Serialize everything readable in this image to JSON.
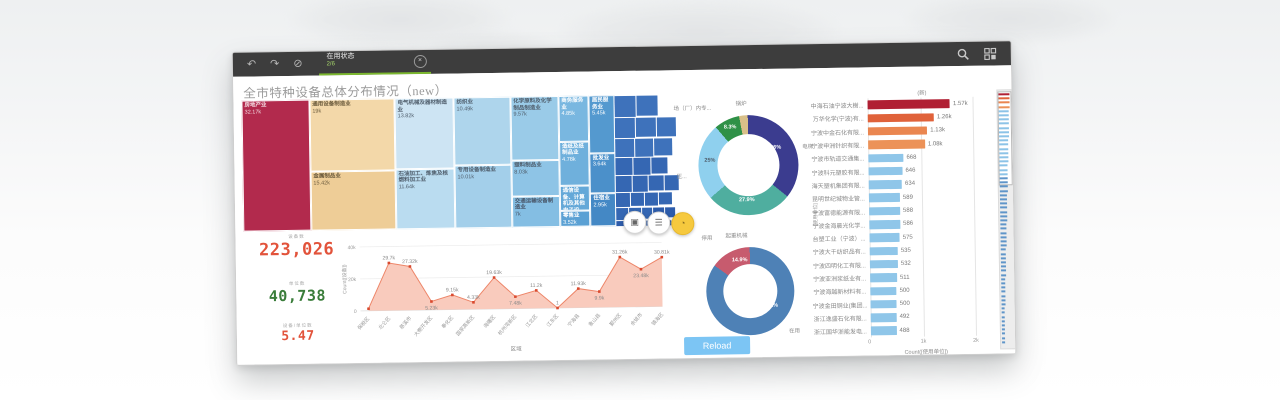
{
  "toolbar": {
    "tab_label": "在用状态",
    "tab_count": "2/6",
    "close_glyph": "×",
    "icons": {
      "back": "↶",
      "forward": "↷",
      "clear": "⊘",
      "search": "magnifier",
      "selections_tool": "grid"
    }
  },
  "page": {
    "title": "全市特种设备总体分布情况（new）"
  },
  "kpis": [
    {
      "label": "设备数",
      "value": "223,026",
      "color": "#e2533b"
    },
    {
      "label": "单位数",
      "value": "40,738",
      "color": "#3a7d3a"
    },
    {
      "label": "设备/单位数",
      "value": "5.47",
      "color": "#e2533b"
    }
  ],
  "reload_label": "Reload",
  "floating_buttons": [
    {
      "name": "snapshot",
      "glyph": "▣"
    },
    {
      "name": "exploration-menu",
      "glyph": "☰"
    },
    {
      "name": "insights",
      "glyph": "◔"
    }
  ],
  "chart_data": [
    {
      "id": "treemap",
      "type": "treemap",
      "title": "全市特种设备总体分布情况（new）",
      "cells": [
        {
          "name": "房地产业",
          "value": "32.17k",
          "x": 0,
          "y": 0,
          "w": 15.5,
          "h": 100,
          "bg": "#b22a4d",
          "tc": "#f3dce2"
        },
        {
          "name": "通用设备制造业",
          "value": "19k",
          "x": 15.5,
          "y": 0,
          "w": 19.5,
          "h": 55,
          "bg": "#f3d8a9",
          "tc": "#6b5b3d"
        },
        {
          "name": "金属制品业",
          "value": "15.42k",
          "x": 15.5,
          "y": 55,
          "w": 19.5,
          "h": 45,
          "bg": "#eecd97",
          "tc": "#6b5b3d"
        },
        {
          "name": "电气机械及器材制造业",
          "value": "13.82k",
          "x": 35,
          "y": 0,
          "w": 13.5,
          "h": 54,
          "bg": "#cde4f3",
          "tc": "#4f5d6b"
        },
        {
          "name": "石油加工、炼焦及核燃料加工业",
          "value": "11.64k",
          "x": 35,
          "y": 54,
          "w": 13.5,
          "h": 46,
          "bg": "#badcf0",
          "tc": "#4f5d6b"
        },
        {
          "name": "纺织业",
          "value": "10.49k",
          "x": 48.5,
          "y": 0,
          "w": 13,
          "h": 52,
          "bg": "#aed5ec",
          "tc": "#4f5d6b"
        },
        {
          "name": "专用设备制造业",
          "value": "10.01k",
          "x": 48.5,
          "y": 52,
          "w": 13,
          "h": 48,
          "bg": "#a3cfea",
          "tc": "#4f5d6b"
        },
        {
          "name": "化学原料及化学制品制造业",
          "value": "9.57k",
          "x": 61.5,
          "y": 0,
          "w": 11,
          "h": 49,
          "bg": "#9acbe8",
          "tc": "#4f5d6b"
        },
        {
          "name": "塑料制品业",
          "value": "8.03k",
          "x": 61.5,
          "y": 49,
          "w": 11,
          "h": 27,
          "bg": "#8ec4e6",
          "tc": "#4f5d6b"
        },
        {
          "name": "交通运输设备制造业",
          "value": "7k",
          "x": 61.5,
          "y": 76,
          "w": 11,
          "h": 24,
          "bg": "#84bee3",
          "tc": "#49576a"
        },
        {
          "name": "商务服务业",
          "value": "4.85k",
          "x": 72.5,
          "y": 0,
          "w": 7,
          "h": 35,
          "bg": "#79b7e0",
          "tc": "#ffffff"
        },
        {
          "name": "造纸及纸制品业",
          "value": "4.78k",
          "x": 72.5,
          "y": 35,
          "w": 7,
          "h": 34,
          "bg": "#6fb0dc",
          "tc": "#ffffff"
        },
        {
          "name": "通信设备、计算机及其他电子设备...",
          "value": "3.91k",
          "x": 72.5,
          "y": 69,
          "w": 7,
          "h": 19,
          "bg": "#64a8d8",
          "tc": "#ffffff"
        },
        {
          "name": "零售业",
          "value": "3.52k",
          "x": 72.5,
          "y": 88,
          "w": 7,
          "h": 12,
          "bg": "#5ba1d4",
          "tc": "#ffffff"
        },
        {
          "name": "居民服务业",
          "value": "5.45k",
          "x": 79.5,
          "y": 0,
          "w": 5.8,
          "h": 44,
          "bg": "#5499cf",
          "tc": "#ffffff"
        },
        {
          "name": "批发业",
          "value": "3.64k",
          "x": 79.5,
          "y": 44,
          "w": 5.8,
          "h": 31,
          "bg": "#4b90ca",
          "tc": "#ffffff"
        },
        {
          "name": "住宿业",
          "value": "2.95k",
          "x": 79.5,
          "y": 75,
          "w": 5.8,
          "h": 25,
          "bg": "#4488c5",
          "tc": "#ffffff"
        }
      ]
    },
    {
      "id": "district_line",
      "type": "area",
      "xlabel": "区域",
      "ylabel": "Count([设备])",
      "ylim": [
        0,
        40000
      ],
      "yticks": [
        {
          "v": 0,
          "t": "0"
        },
        {
          "v": 20000,
          "t": "20k"
        },
        {
          "v": 40000,
          "t": "40k"
        }
      ],
      "line_color": "#ed8568",
      "fill_color": "#f9cbbd",
      "point_color": "#d94a2f",
      "points": [
        {
          "x": "保税区",
          "v": 1300,
          "label": ""
        },
        {
          "x": "北仑区",
          "v": 29700,
          "label": "29.7k"
        },
        {
          "x": "慈溪市",
          "v": 27320,
          "label": "27.32k"
        },
        {
          "x": "大榭开发区",
          "v": 5230,
          "label": "5.23k",
          "below": true
        },
        {
          "x": "奉化区",
          "v": 9150,
          "label": "9.15k"
        },
        {
          "x": "国家高新区",
          "v": 4330,
          "label": "4.33k"
        },
        {
          "x": "海曙区",
          "v": 19630,
          "label": "19.63k"
        },
        {
          "x": "杭州湾新区",
          "v": 7480,
          "label": "7.48k",
          "below": true
        },
        {
          "x": "江北区",
          "v": 11200,
          "label": "11.2k"
        },
        {
          "x": "江东区",
          "v": 1,
          "label": "1"
        },
        {
          "x": "宁海县",
          "v": 11930,
          "label": "11.93k"
        },
        {
          "x": "象山县",
          "v": 9900,
          "label": "9.9k",
          "below": true
        },
        {
          "x": "鄞州区",
          "v": 31260,
          "label": "31.26k"
        },
        {
          "x": "余姚市",
          "v": 23480,
          "label": "23.48k",
          "below": true
        },
        {
          "x": "镇海区",
          "v": 30810,
          "label": "30.81k"
        }
      ]
    },
    {
      "id": "device_type_donut",
      "type": "pie",
      "slices": [
        {
          "label": "电梯",
          "pct": 36,
          "pct_label": "36%",
          "color": "#3b3c8f"
        },
        {
          "label": "起重机械",
          "pct": 27.9,
          "pct_label": "27.9%",
          "color": "#4fae9f"
        },
        {
          "label": "压...",
          "pct": 25,
          "pct_label": "25%",
          "color": "#8fd0ee"
        },
        {
          "label": "场（厂）内专...",
          "pct": 8.3,
          "pct_label": "8.3%",
          "color": "#2f9147"
        },
        {
          "label": "锅炉",
          "pct": 2.8,
          "pct_label": "",
          "color": "#d9c089"
        }
      ]
    },
    {
      "id": "status_donut",
      "type": "pie",
      "slices": [
        {
          "label": "在用",
          "pct": 85.1,
          "pct_label": "85.1%",
          "color": "#4e81b6"
        },
        {
          "label": "停用",
          "pct": 14.9,
          "pct_label": "14.9%",
          "color": "#c75b6e"
        }
      ]
    },
    {
      "id": "company_bar",
      "type": "bar",
      "title": "(新)",
      "xlabel": "Count([使用单位])",
      "dim_label": "[使用单位]",
      "xlim": [
        0,
        2000
      ],
      "xticks": [
        {
          "v": 0,
          "t": "0"
        },
        {
          "v": 1000,
          "t": "1k"
        },
        {
          "v": 2000,
          "t": "2k"
        }
      ],
      "default_color": "#8fc6e9",
      "bars": [
        {
          "name": "中海石油宁波大榭...",
          "v": 1570,
          "t": "1.57k",
          "color": "#b01f33"
        },
        {
          "name": "万华化学(宁波)有...",
          "v": 1260,
          "t": "1.26k",
          "color": "#e0623a"
        },
        {
          "name": "宁波中金石化有限...",
          "v": 1130,
          "t": "1.13k",
          "color": "#ea8650"
        },
        {
          "name": "宁波申洲针织有限...",
          "v": 1080,
          "t": "1.08k",
          "color": "#ec9258"
        },
        {
          "name": "宁波市轨道交通集...",
          "v": 668,
          "t": "668"
        },
        {
          "name": "宁波科元塑胶有限...",
          "v": 646,
          "t": "646"
        },
        {
          "name": "海天塑机集团有限...",
          "v": 634,
          "t": "634"
        },
        {
          "name": "昆明世纪城物业管...",
          "v": 589,
          "t": "589"
        },
        {
          "name": "宁波富德能源有限...",
          "v": 588,
          "t": "588"
        },
        {
          "name": "宁波金海晨光化学...",
          "v": 586,
          "t": "586"
        },
        {
          "name": "台塑工业（宁波）...",
          "v": 575,
          "t": "575"
        },
        {
          "name": "宁波大千纺织品有...",
          "v": 535,
          "t": "535"
        },
        {
          "name": "宁波四明化工有限...",
          "v": 532,
          "t": "532"
        },
        {
          "name": "宁波亚洲浆纸业有...",
          "v": 511,
          "t": "511"
        },
        {
          "name": "宁波海越新材料有...",
          "v": 500,
          "t": "500"
        },
        {
          "name": "宁波金田铜业(集团...",
          "v": 500,
          "t": "500"
        },
        {
          "name": "浙江逸盛石化有限...",
          "v": 492,
          "t": "492"
        },
        {
          "name": "浙江国华浙能发电...",
          "v": 488,
          "t": "488"
        }
      ]
    }
  ]
}
